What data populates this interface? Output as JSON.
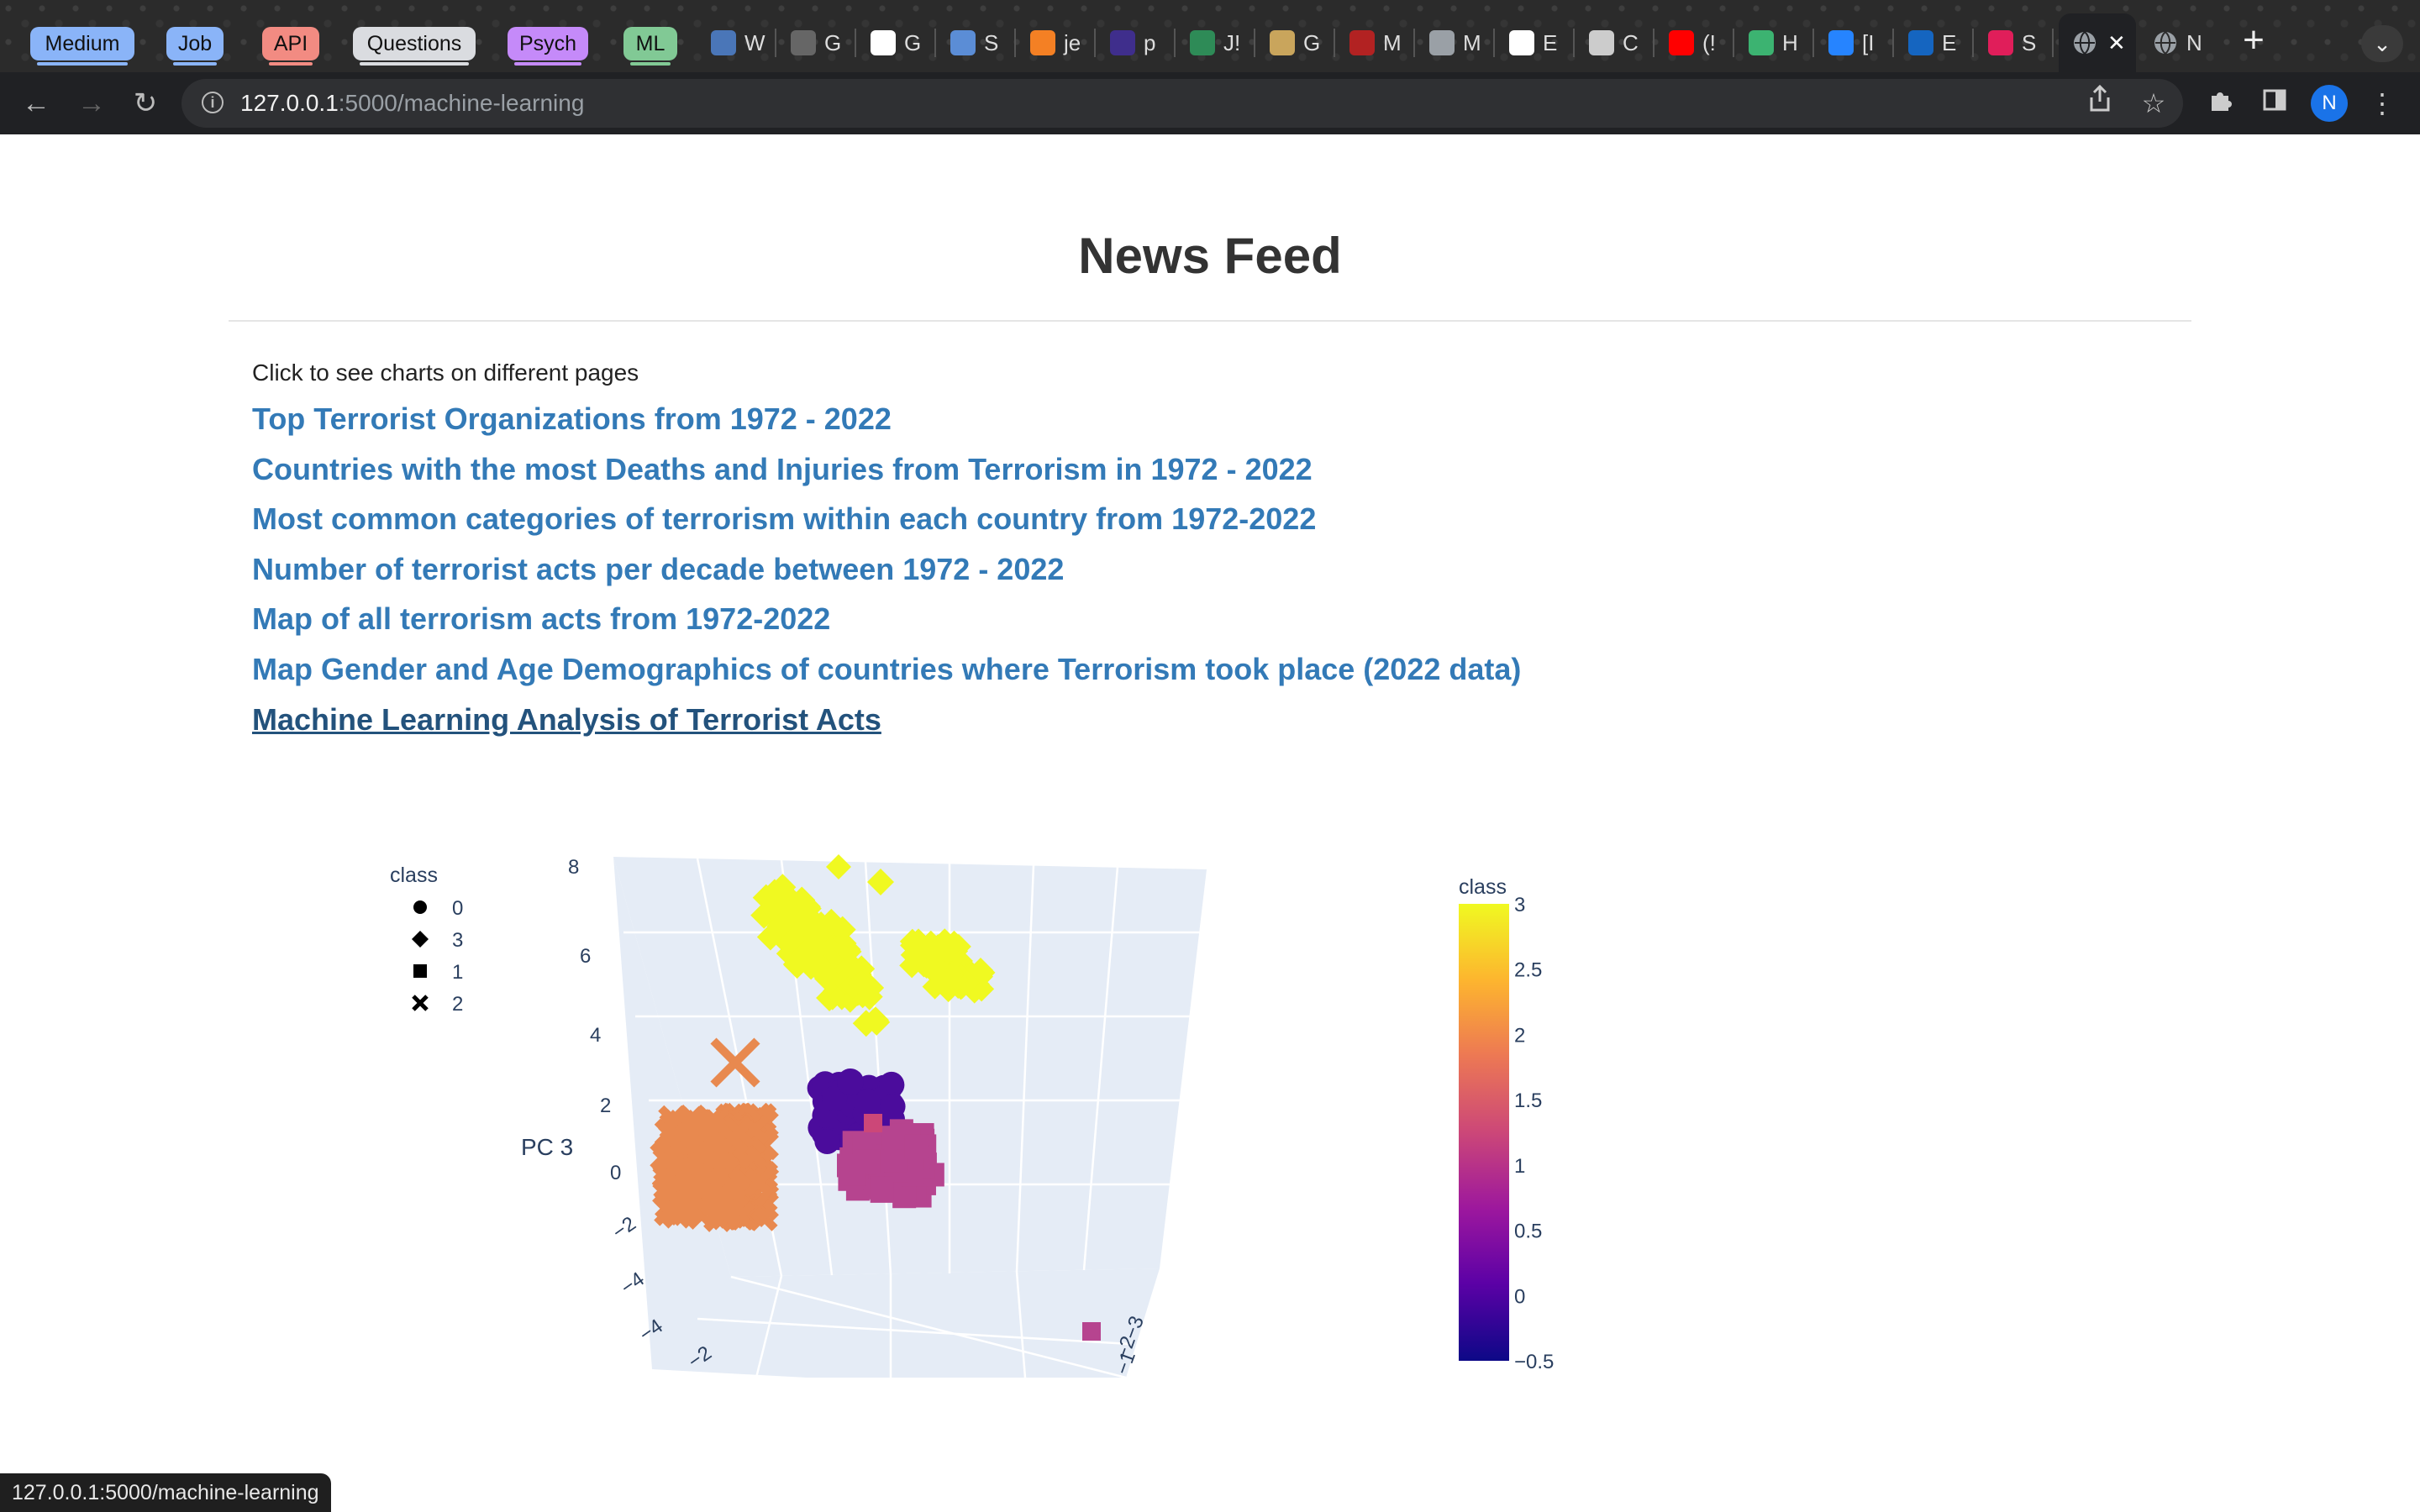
{
  "browser": {
    "group_tabs": [
      {
        "label": "Medium",
        "color": "#8ab4f8"
      },
      {
        "label": "Job",
        "color": "#8ab4f8"
      },
      {
        "label": "API",
        "color": "#f28b82"
      },
      {
        "label": "Questions",
        "color": "#dadce0"
      },
      {
        "label": "Psych",
        "color": "#c58af9"
      },
      {
        "label": "ML",
        "color": "#81c995"
      }
    ],
    "pinned_tabs": [
      {
        "label": "W",
        "icon": "globe-icon",
        "color": "#4a76b8"
      },
      {
        "label": "G",
        "icon": "grid-icon",
        "color": "#666666"
      },
      {
        "label": "G",
        "icon": "g-circle-icon",
        "color": "#ffffff"
      },
      {
        "label": "S",
        "icon": "slides-icon",
        "color": "#5b8dd6"
      },
      {
        "label": "je",
        "icon": "stack-icon",
        "color": "#f48024"
      },
      {
        "label": "p",
        "icon": "pixel-icon",
        "color": "#3f2e8c"
      },
      {
        "label": "J!",
        "icon": "wave-icon",
        "color": "#2e8b57"
      },
      {
        "label": "G",
        "icon": "coin-icon",
        "color": "#c9a55c"
      },
      {
        "label": "M",
        "icon": "r-logo-icon",
        "color": "#b22222"
      },
      {
        "label": "M",
        "icon": "globe-icon",
        "color": "#9aa0a6"
      },
      {
        "label": "E",
        "icon": "github-icon",
        "color": "#ffffff"
      },
      {
        "label": "C",
        "icon": "columns-icon",
        "color": "#cccccc"
      },
      {
        "label": "(!",
        "icon": "youtube-icon",
        "color": "#ff0000"
      },
      {
        "label": "H",
        "icon": "w-logo-icon",
        "color": "#3cb371"
      },
      {
        "label": "[I",
        "icon": "jira-icon",
        "color": "#2684ff"
      },
      {
        "label": "E",
        "icon": "bb-icon",
        "color": "#1565c0"
      },
      {
        "label": "S",
        "icon": "slack-icon",
        "color": "#e01e5a"
      }
    ],
    "active_tab": {
      "icon": "globe-icon",
      "close": "✕"
    },
    "next_tab": {
      "label": "N",
      "icon": "globe-icon"
    },
    "new_tab": "+",
    "tab_menu": "⌄",
    "url_host": "127.0.0.1",
    "url_path": ":5000/machine-learning",
    "profile_initial": "N",
    "status_url": "127.0.0.1:5000/machine-learning"
  },
  "page": {
    "title": "News Feed",
    "intro": "Click to see charts on different pages",
    "links": [
      {
        "text": "Top Terrorist Organizations from 1972 - 2022",
        "active": false
      },
      {
        "text": "Countries with the most Deaths and Injuries from Terrorism in 1972 - 2022",
        "active": false
      },
      {
        "text": "Most common categories of terrorism within each country from 1972-2022",
        "active": false
      },
      {
        "text": "Number of terrorist acts per decade between 1972 - 2022",
        "active": false
      },
      {
        "text": "Map of all terrorism acts from 1972-2022",
        "active": false
      },
      {
        "text": "Map Gender and Age Demographics of countries where Terrorism took place (2022 data)",
        "active": false
      },
      {
        "text": "Machine Learning Analysis of Terrorist Acts",
        "active": true
      }
    ]
  },
  "chart_data": {
    "type": "scatter3d",
    "zlabel": "PC 3",
    "z_ticks": [
      "8",
      "6",
      "4",
      "2",
      "0",
      "−2",
      "−4"
    ],
    "x_ticks": [
      "−4",
      "−2"
    ],
    "y_ticks": [
      "−1",
      "−2",
      "−3"
    ],
    "legend": {
      "title": "class",
      "entries": [
        {
          "label": "0",
          "symbol": "circle"
        },
        {
          "label": "3",
          "symbol": "diamond"
        },
        {
          "label": "1",
          "symbol": "square"
        },
        {
          "label": "2",
          "symbol": "x"
        }
      ]
    },
    "colorbar": {
      "title": "class",
      "ticks": [
        "3",
        "2.5",
        "2",
        "1.5",
        "1",
        "0.5",
        "0",
        "−0.5"
      ],
      "range": [
        -0.5,
        3
      ],
      "colors": [
        "#f0f921",
        "#fdb42f",
        "#ed7953",
        "#cc4778",
        "#9c179e",
        "#5c01a6",
        "#0d0887"
      ]
    },
    "clusters": [
      {
        "class": 3,
        "symbol": "diamond",
        "color": "#f0f921",
        "label": "yellow diamond cluster, high PC 3"
      },
      {
        "class": 2,
        "symbol": "x",
        "color": "#e8894f",
        "label": "orange cross cluster, PC 3 near 0"
      },
      {
        "class": 0,
        "symbol": "circle",
        "color": "#4b0c9c",
        "label": "dark purple circle cluster"
      },
      {
        "class": 1,
        "symbol": "square",
        "color": "#b6448f",
        "label": "magenta square cluster"
      }
    ]
  }
}
